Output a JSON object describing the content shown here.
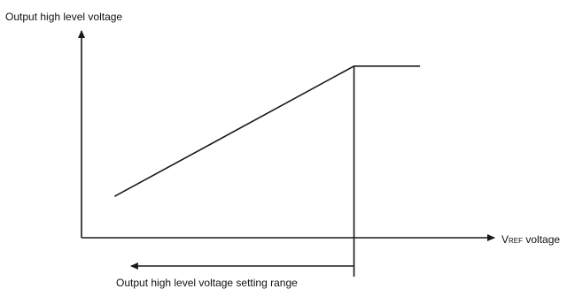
{
  "chart_data": {
    "type": "line",
    "ylabel": "Output high level voltage",
    "xlabel": {
      "prefix": "V",
      "subscript": "REF",
      "suffix": " voltage"
    },
    "range_label": "Output high level voltage setting range",
    "series": [
      {
        "points": [
          {
            "x": 0.08,
            "y": 0.2
          },
          {
            "x": 0.66,
            "y": 0.83
          },
          {
            "x": 0.82,
            "y": 0.83
          }
        ]
      }
    ],
    "knee": {
      "x": 0.66,
      "y": 0.83
    },
    "range_arrow": {
      "from_x": 0.66,
      "to_x": 0.12,
      "direction": "left"
    },
    "grid": false
  }
}
